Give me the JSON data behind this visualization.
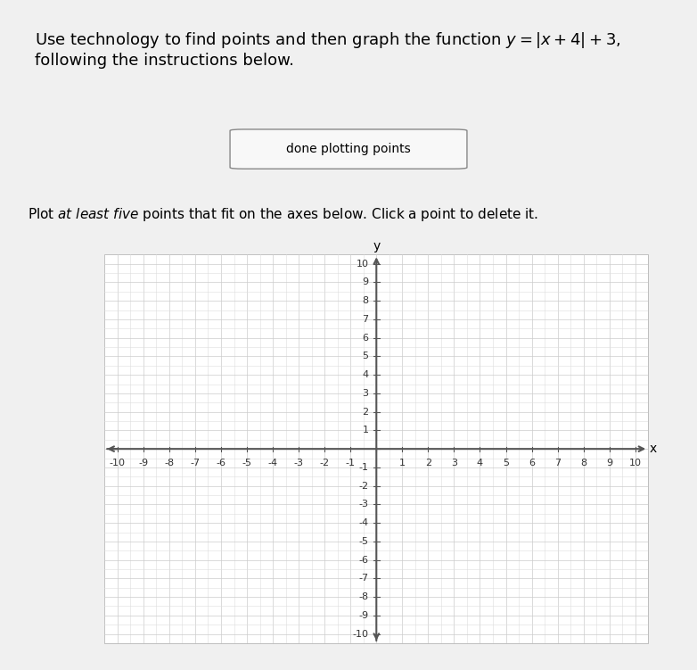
{
  "title_text": "Use technology to find points and then graph the function $y = |x + 4| + 3$,\nfollowing the instructions below.",
  "button_text": "done plotting points",
  "instruction_text": "Plot \\textit{at least five} points that fit on the axes below. Click a point to delete it.",
  "xmin": -10,
  "xmax": 10,
  "ymin": -10,
  "ymax": 10,
  "x_label": "x",
  "y_label": "y",
  "background_color": "#f0f0f0",
  "plot_background": "#ffffff",
  "grid_color": "#cccccc",
  "axis_color": "#555555",
  "tick_fontsize": 8,
  "title_fontsize": 13,
  "instruction_fontsize": 11,
  "minor_grid": true
}
